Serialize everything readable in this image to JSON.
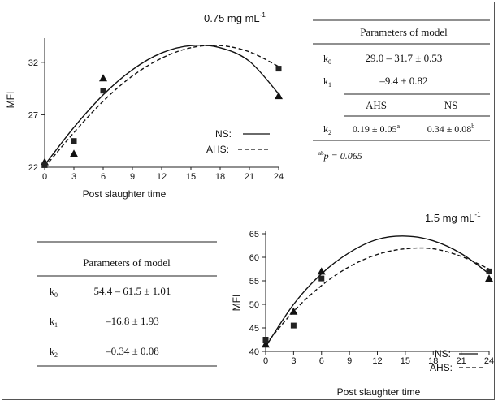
{
  "chart_data": [
    {
      "type": "line",
      "title": "0.75 mg mL",
      "title_sup": "-1",
      "xlabel": "Post slaughter time",
      "ylabel": "MFI",
      "x_ticks": [
        0,
        3,
        6,
        9,
        12,
        15,
        18,
        21,
        24
      ],
      "y_ticks": [
        22,
        27,
        32
      ],
      "xlim": [
        0,
        24
      ],
      "ylim": [
        22,
        34
      ],
      "legend_position": "lower-right",
      "series": [
        {
          "name": "NS:",
          "line_style": "solid",
          "marker": "triangle",
          "points": [
            [
              0,
              22.5
            ],
            [
              3,
              23.3
            ],
            [
              6,
              30.5
            ],
            [
              24,
              28.8
            ]
          ],
          "curve": [
            [
              0,
              22.2
            ],
            [
              3,
              25.8
            ],
            [
              6,
              28.9
            ],
            [
              9,
              31.3
            ],
            [
              12,
              32.9
            ],
            [
              15,
              33.6
            ],
            [
              18,
              33.4
            ],
            [
              21,
              32.1
            ],
            [
              24,
              29.0
            ]
          ]
        },
        {
          "name": "AHS:",
          "line_style": "dashed",
          "marker": "square",
          "points": [
            [
              0,
              22.2
            ],
            [
              3,
              24.5
            ],
            [
              6,
              29.3
            ],
            [
              24,
              31.4
            ]
          ],
          "curve": [
            [
              0,
              22.0
            ],
            [
              3,
              25.3
            ],
            [
              6,
              28.3
            ],
            [
              9,
              30.7
            ],
            [
              12,
              32.4
            ],
            [
              15,
              33.4
            ],
            [
              18,
              33.6
            ],
            [
              21,
              33.0
            ],
            [
              24,
              31.6
            ]
          ]
        }
      ]
    },
    {
      "type": "line",
      "title": "1.5 mg mL",
      "title_sup": "-1",
      "xlabel": "Post slaughter time",
      "ylabel": "MFI",
      "x_ticks": [
        0,
        3,
        6,
        9,
        12,
        15,
        18,
        21,
        24
      ],
      "y_ticks": [
        40,
        45,
        50,
        55,
        60,
        65
      ],
      "xlim": [
        0,
        24
      ],
      "ylim": [
        40,
        65
      ],
      "legend_position": "lower-right",
      "series": [
        {
          "name": "NS:",
          "line_style": "solid",
          "marker": "triangle",
          "points": [
            [
              0,
              41.5
            ],
            [
              3,
              48.5
            ],
            [
              6,
              57.0
            ],
            [
              24,
              55.5
            ]
          ],
          "curve": [
            [
              0,
              41.0
            ],
            [
              3,
              50.0
            ],
            [
              6,
              56.5
            ],
            [
              9,
              61.0
            ],
            [
              12,
              63.8
            ],
            [
              15,
              64.5
            ],
            [
              18,
              63.5
            ],
            [
              21,
              60.8
            ],
            [
              24,
              56.5
            ]
          ]
        },
        {
          "name": "AHS:",
          "line_style": "dashed",
          "marker": "square",
          "points": [
            [
              0,
              42.5
            ],
            [
              3,
              45.5
            ],
            [
              6,
              55.5
            ],
            [
              24,
              57.0
            ]
          ],
          "curve": [
            [
              0,
              41.5
            ],
            [
              3,
              48.5
            ],
            [
              6,
              54.0
            ],
            [
              9,
              58.0
            ],
            [
              12,
              60.6
            ],
            [
              15,
              61.8
            ],
            [
              18,
              61.8
            ],
            [
              21,
              60.2
            ],
            [
              24,
              57.5
            ]
          ]
        }
      ]
    }
  ],
  "tables": [
    {
      "title": "Parameters of model",
      "rows": [
        {
          "label": "k",
          "sub": "0",
          "value": "29.0 – 31.7 ± 0.53"
        },
        {
          "label": "k",
          "sub": "1",
          "value": "–9.4 ± 0.82"
        }
      ],
      "col_headers": [
        "AHS",
        "NS"
      ],
      "split_row": {
        "label": "k",
        "sub": "2",
        "values": [
          "0.19 ± 0.05",
          "0.34 ± 0.08"
        ],
        "sups": [
          "a",
          "b"
        ]
      },
      "footnote_sup": "ab",
      "footnote": "p = 0.065"
    },
    {
      "title": "Parameters of model",
      "rows": [
        {
          "label": "k",
          "sub": "0",
          "value": "54.4 – 61.5 ± 1.01"
        },
        {
          "label": "k",
          "sub": "1",
          "value": "–16.8 ± 1.93"
        },
        {
          "label": "k",
          "sub": "2",
          "value": "–0.34 ± 0.08"
        }
      ]
    }
  ]
}
